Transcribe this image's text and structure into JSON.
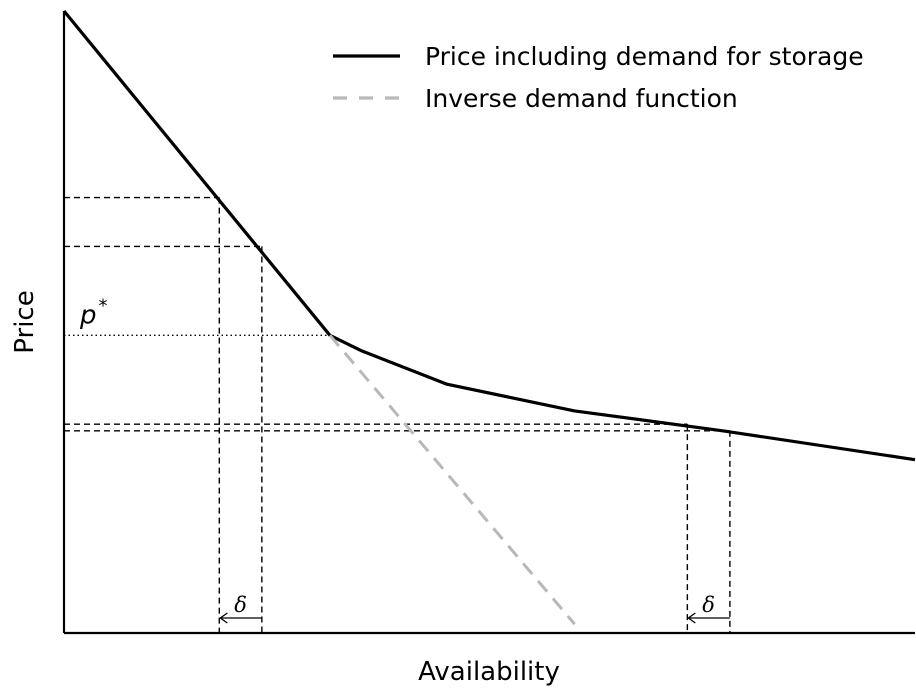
{
  "chart_data": {
    "type": "line",
    "title": "",
    "xlabel": "Availability",
    "ylabel": "Price",
    "xlim": [
      0,
      20
    ],
    "ylim": [
      0,
      14
    ],
    "grid": false,
    "legend_placement": "top-right",
    "series": [
      {
        "name": "Price including demand for storage",
        "style": "solid",
        "color": "#000000",
        "points": [
          {
            "x": 0,
            "y": 14
          },
          {
            "x": 6.25,
            "y": 6.7
          },
          {
            "x": 7,
            "y": 6.35
          },
          {
            "x": 9,
            "y": 5.6
          },
          {
            "x": 12,
            "y": 5.0
          },
          {
            "x": 15.5,
            "y": 4.55
          },
          {
            "x": 20,
            "y": 3.9
          }
        ]
      },
      {
        "name": "Inverse demand function",
        "style": "dashed",
        "color": "#b8b8b8",
        "points": [
          {
            "x": 6.25,
            "y": 6.7
          },
          {
            "x": 12,
            "y": 0.2
          }
        ]
      }
    ],
    "annotations": {
      "p_star": {
        "label": "p",
        "sup": "*",
        "y": 6.7,
        "x_end": 6.25
      },
      "reference_levels": [
        {
          "x": 3.65,
          "y": 9.8
        },
        {
          "x": 4.65,
          "y": 8.7
        },
        {
          "x": 14.65,
          "y": 4.7
        },
        {
          "x": 15.65,
          "y": 4.55
        }
      ],
      "shifts": [
        {
          "from": 4.65,
          "to": 3.65,
          "label": "δ"
        },
        {
          "from": 15.65,
          "to": 14.65,
          "label": "δ"
        }
      ]
    }
  }
}
